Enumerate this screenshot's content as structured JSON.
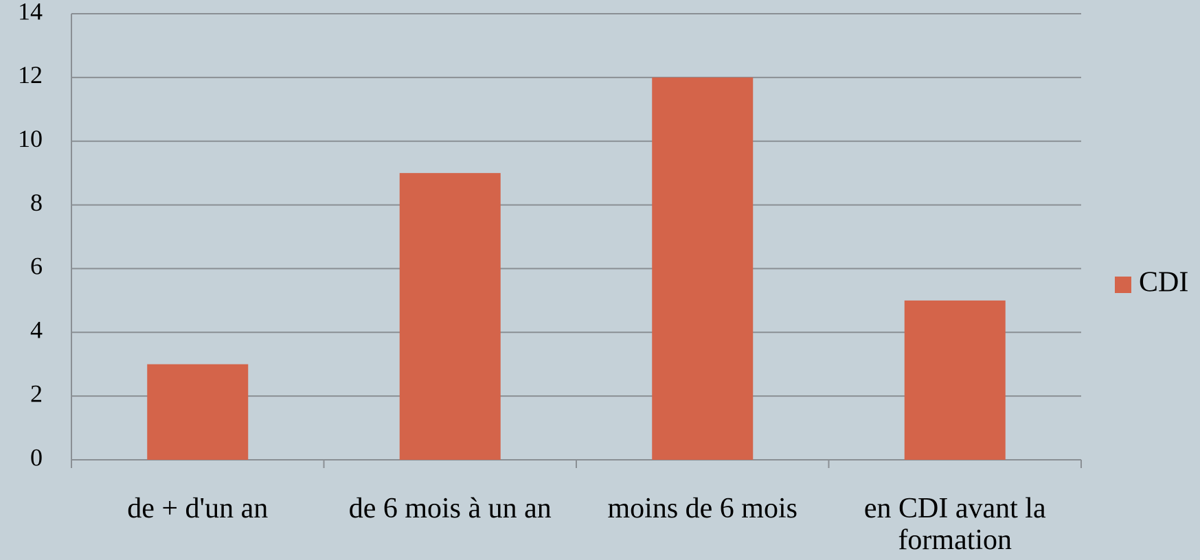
{
  "chart_data": {
    "type": "bar",
    "categories": [
      "de + d'un an",
      "de 6 mois à un an",
      "moins de 6 mois",
      "en CDI avant la formation"
    ],
    "series": [
      {
        "name": "CDI",
        "color": "#d4644a",
        "values": [
          3,
          9,
          12,
          5
        ]
      }
    ],
    "ylim": [
      0,
      14
    ],
    "yticks": [
      0,
      2,
      4,
      6,
      8,
      10,
      12,
      14
    ],
    "grid": true,
    "legend": "right"
  }
}
